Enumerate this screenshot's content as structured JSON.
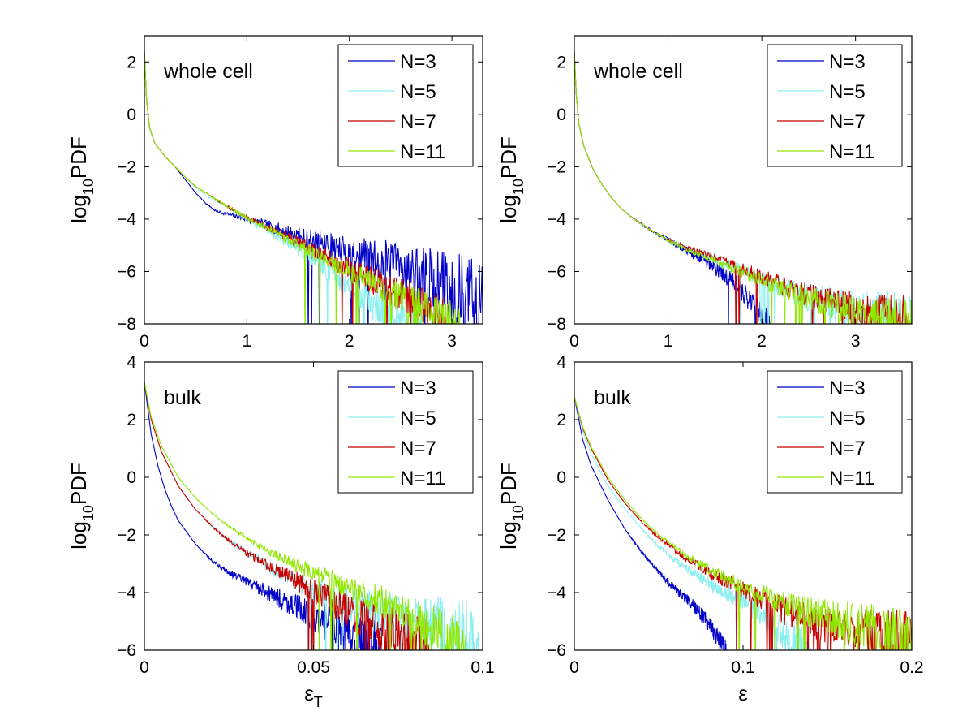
{
  "chart_data": [
    {
      "type": "line",
      "panel_label": "whole cell",
      "xlabel": "",
      "ylabel": {
        "base": "log",
        "sub": "10",
        "rest": "PDF"
      },
      "xlim": [
        0,
        3.3
      ],
      "ylim": [
        -8,
        3
      ],
      "xticks": [
        0,
        1,
        2,
        3
      ],
      "yticks": [
        2,
        0,
        -2,
        -4,
        -6,
        -8
      ],
      "legend_position": "top-right",
      "series": [
        {
          "name": "N=3",
          "color": "#0000c8",
          "noise": 0.9,
          "x": [
            0,
            0.02,
            0.05,
            0.1,
            0.2,
            0.3,
            0.4,
            0.5,
            0.6,
            0.7,
            0.8,
            0.9,
            1.0,
            1.2,
            1.4,
            1.6,
            1.8,
            2.0,
            2.2,
            2.4,
            2.6,
            2.8,
            3.0,
            3.2,
            3.3
          ],
          "y": [
            2.4,
            0.6,
            -0.5,
            -1.1,
            -1.6,
            -2.0,
            -2.5,
            -3.0,
            -3.4,
            -3.7,
            -3.8,
            -3.9,
            -4.0,
            -4.25,
            -4.5,
            -4.75,
            -5.0,
            -5.3,
            -5.5,
            -5.7,
            -6.0,
            -6.3,
            -6.6,
            -7.0,
            -7.2
          ]
        },
        {
          "name": "N=5",
          "color": "#8cf0f0",
          "noise": 0.7,
          "x": [
            0,
            0.02,
            0.05,
            0.1,
            0.2,
            0.3,
            0.4,
            0.5,
            0.6,
            0.8,
            1.0,
            1.2,
            1.4,
            1.6,
            1.8,
            2.0,
            2.2,
            2.4,
            2.6,
            2.7
          ],
          "y": [
            2.4,
            0.6,
            -0.5,
            -1.1,
            -1.6,
            -2.0,
            -2.4,
            -2.8,
            -3.1,
            -3.5,
            -4.0,
            -4.4,
            -4.9,
            -5.4,
            -6.0,
            -6.6,
            -7.2,
            -7.6,
            -8.0,
            -8.0
          ]
        },
        {
          "name": "N=7",
          "color": "#c80000",
          "noise": 0.6,
          "x": [
            0,
            0.02,
            0.05,
            0.1,
            0.2,
            0.3,
            0.4,
            0.5,
            0.6,
            0.8,
            1.0,
            1.2,
            1.4,
            1.6,
            1.8,
            2.0,
            2.2,
            2.4,
            2.6,
            2.8,
            2.95
          ],
          "y": [
            2.4,
            0.6,
            -0.5,
            -1.1,
            -1.6,
            -2.0,
            -2.4,
            -2.75,
            -3.0,
            -3.5,
            -3.95,
            -4.3,
            -4.7,
            -5.1,
            -5.5,
            -5.9,
            -6.3,
            -6.7,
            -7.1,
            -7.5,
            -7.8
          ]
        },
        {
          "name": "N=11",
          "color": "#90e800",
          "noise": 0.55,
          "x": [
            0,
            0.02,
            0.05,
            0.1,
            0.2,
            0.3,
            0.4,
            0.5,
            0.6,
            0.8,
            1.0,
            1.2,
            1.4,
            1.6,
            1.8,
            2.0,
            2.2,
            2.4,
            2.6,
            2.8,
            3.0,
            3.1
          ],
          "y": [
            2.4,
            0.6,
            -0.5,
            -1.1,
            -1.6,
            -2.0,
            -2.4,
            -2.75,
            -3.0,
            -3.5,
            -3.95,
            -4.35,
            -4.8,
            -5.2,
            -5.6,
            -6.0,
            -6.4,
            -6.8,
            -7.2,
            -7.5,
            -7.8,
            -8.0
          ]
        }
      ]
    },
    {
      "type": "line",
      "panel_label": "whole cell",
      "xlabel": "",
      "ylabel": {
        "base": "log",
        "sub": "10",
        "rest": "PDF"
      },
      "xlim": [
        0,
        3.6
      ],
      "ylim": [
        -8,
        3
      ],
      "xticks": [
        0,
        1,
        2,
        3
      ],
      "yticks": [
        2,
        0,
        -2,
        -4,
        -6,
        -8
      ],
      "legend_position": "top-right",
      "series": [
        {
          "name": "N=3",
          "color": "#0000c8",
          "noise": 0.9,
          "x": [
            0,
            0.02,
            0.05,
            0.1,
            0.2,
            0.3,
            0.4,
            0.5,
            0.6,
            0.8,
            1.0,
            1.2,
            1.4,
            1.6,
            1.8,
            2.0,
            2.1
          ],
          "y": [
            2.4,
            0.8,
            -0.4,
            -1.2,
            -2.1,
            -2.7,
            -3.2,
            -3.6,
            -3.9,
            -4.4,
            -4.8,
            -5.2,
            -5.6,
            -6.1,
            -6.8,
            -7.6,
            -8.0
          ]
        },
        {
          "name": "N=5",
          "color": "#8cf0f0",
          "noise": 0.6,
          "x": [
            0,
            0.02,
            0.05,
            0.1,
            0.2,
            0.3,
            0.4,
            0.5,
            0.6,
            0.8,
            1.0,
            1.2,
            1.4,
            1.6,
            1.8,
            2.0,
            2.2,
            2.4,
            2.6,
            2.8,
            3.0,
            3.2,
            3.4,
            3.6
          ],
          "y": [
            2.4,
            0.8,
            -0.4,
            -1.2,
            -2.1,
            -2.7,
            -3.2,
            -3.6,
            -3.9,
            -4.4,
            -4.8,
            -5.1,
            -5.4,
            -5.7,
            -6.0,
            -6.3,
            -6.6,
            -6.9,
            -7.1,
            -7.3,
            -7.5,
            -7.6,
            -7.7,
            -7.8
          ]
        },
        {
          "name": "N=7",
          "color": "#c80000",
          "noise": 0.5,
          "x": [
            0,
            0.02,
            0.05,
            0.1,
            0.2,
            0.3,
            0.4,
            0.5,
            0.6,
            0.8,
            1.0,
            1.2,
            1.4,
            1.6,
            1.8,
            2.0,
            2.2,
            2.4,
            2.6,
            2.8,
            3.0,
            3.2,
            3.4,
            3.6
          ],
          "y": [
            2.4,
            0.8,
            -0.4,
            -1.2,
            -2.1,
            -2.7,
            -3.2,
            -3.6,
            -3.9,
            -4.4,
            -4.8,
            -5.1,
            -5.35,
            -5.6,
            -5.9,
            -6.2,
            -6.5,
            -6.8,
            -7.0,
            -7.2,
            -7.4,
            -7.55,
            -7.7,
            -7.8
          ]
        },
        {
          "name": "N=11",
          "color": "#90e800",
          "noise": 0.5,
          "x": [
            0,
            0.02,
            0.05,
            0.1,
            0.2,
            0.3,
            0.4,
            0.5,
            0.6,
            0.8,
            1.0,
            1.2,
            1.4,
            1.6,
            1.8,
            2.0,
            2.2,
            2.4,
            2.6,
            2.8,
            3.0,
            3.2,
            3.4,
            3.6
          ],
          "y": [
            2.4,
            0.8,
            -0.4,
            -1.2,
            -2.1,
            -2.7,
            -3.2,
            -3.6,
            -3.9,
            -4.4,
            -4.8,
            -5.15,
            -5.45,
            -5.75,
            -6.05,
            -6.35,
            -6.65,
            -6.9,
            -7.15,
            -7.35,
            -7.55,
            -7.7,
            -7.8,
            -7.9
          ]
        }
      ]
    },
    {
      "type": "line",
      "panel_label": "bulk",
      "xlabel": {
        "base": "ε",
        "sub": "T"
      },
      "ylabel": {
        "base": "log",
        "sub": "10",
        "rest": "PDF"
      },
      "xlim": [
        0,
        0.1
      ],
      "ylim": [
        -6,
        4
      ],
      "xticks": [
        0,
        0.05,
        0.1
      ],
      "yticks": [
        4,
        2,
        0,
        -2,
        -4,
        -6
      ],
      "legend_position": "top-right",
      "series": [
        {
          "name": "N=3",
          "color": "#0000c8",
          "noise": 1.2,
          "x": [
            0,
            0.002,
            0.004,
            0.006,
            0.008,
            0.01,
            0.015,
            0.02,
            0.025,
            0.03,
            0.035,
            0.04,
            0.045,
            0.05,
            0.055,
            0.06,
            0.065,
            0.07
          ],
          "y": [
            3.3,
            1.5,
            0.4,
            -0.4,
            -1.0,
            -1.5,
            -2.3,
            -2.9,
            -3.3,
            -3.6,
            -3.9,
            -4.2,
            -4.5,
            -4.8,
            -5.1,
            -5.4,
            -5.7,
            -6.0
          ]
        },
        {
          "name": "N=5",
          "color": "#8cf0f0",
          "noise": 0.9,
          "x": [
            0,
            0.002,
            0.005,
            0.01,
            0.015,
            0.02,
            0.025,
            0.03,
            0.035,
            0.04,
            0.045,
            0.05,
            0.055,
            0.06,
            0.065,
            0.07,
            0.075,
            0.08,
            0.085,
            0.09,
            0.095,
            0.1
          ],
          "y": [
            3.3,
            2.0,
            0.9,
            -0.3,
            -1.1,
            -1.7,
            -2.2,
            -2.6,
            -2.95,
            -3.3,
            -3.6,
            -3.9,
            -4.1,
            -4.35,
            -4.55,
            -4.75,
            -4.95,
            -5.1,
            -5.3,
            -5.5,
            -5.7,
            -5.9
          ]
        },
        {
          "name": "N=7",
          "color": "#c80000",
          "noise": 0.9,
          "x": [
            0,
            0.002,
            0.005,
            0.01,
            0.015,
            0.02,
            0.025,
            0.03,
            0.035,
            0.04,
            0.045,
            0.05,
            0.055,
            0.06,
            0.065,
            0.07,
            0.075,
            0.08,
            0.085
          ],
          "y": [
            3.3,
            2.0,
            0.9,
            -0.3,
            -1.1,
            -1.7,
            -2.2,
            -2.6,
            -2.95,
            -3.3,
            -3.6,
            -3.95,
            -4.3,
            -4.6,
            -4.9,
            -5.2,
            -5.5,
            -5.8,
            -6.0
          ]
        },
        {
          "name": "N=11",
          "color": "#90e800",
          "noise": 0.6,
          "x": [
            0,
            0.002,
            0.005,
            0.01,
            0.015,
            0.02,
            0.025,
            0.03,
            0.035,
            0.04,
            0.045,
            0.05,
            0.055,
            0.06,
            0.065,
            0.07,
            0.075,
            0.08,
            0.085,
            0.09,
            0.095
          ],
          "y": [
            3.3,
            2.1,
            1.1,
            0.0,
            -0.7,
            -1.25,
            -1.7,
            -2.1,
            -2.45,
            -2.75,
            -3.05,
            -3.3,
            -3.55,
            -3.8,
            -4.05,
            -4.3,
            -4.6,
            -4.9,
            -5.2,
            -5.5,
            -5.8
          ]
        }
      ]
    },
    {
      "type": "line",
      "panel_label": "bulk",
      "xlabel": {
        "base": "ε",
        "sub": ""
      },
      "ylabel": {
        "base": "log",
        "sub": "10",
        "rest": "PDF"
      },
      "xlim": [
        0,
        0.2
      ],
      "ylim": [
        -6,
        4
      ],
      "xticks": [
        0,
        0.1,
        0.2
      ],
      "yticks": [
        4,
        2,
        0,
        -2,
        -4,
        -6
      ],
      "legend_position": "top-right",
      "series": [
        {
          "name": "N=3",
          "color": "#0000c8",
          "noise": 1.0,
          "x": [
            0,
            0.005,
            0.01,
            0.02,
            0.03,
            0.04,
            0.05,
            0.06,
            0.07,
            0.08,
            0.09
          ],
          "y": [
            2.8,
            1.3,
            0.4,
            -0.8,
            -1.8,
            -2.6,
            -3.3,
            -3.9,
            -4.4,
            -5.1,
            -6.0
          ]
        },
        {
          "name": "N=5",
          "color": "#8cf0f0",
          "noise": 0.8,
          "x": [
            0,
            0.005,
            0.01,
            0.02,
            0.03,
            0.04,
            0.05,
            0.06,
            0.07,
            0.08,
            0.09,
            0.1,
            0.11,
            0.12,
            0.13,
            0.14
          ],
          "y": [
            2.8,
            1.6,
            0.8,
            -0.3,
            -1.1,
            -1.8,
            -2.4,
            -2.9,
            -3.3,
            -3.7,
            -4.0,
            -4.3,
            -4.7,
            -5.2,
            -5.7,
            -6.0
          ]
        },
        {
          "name": "N=7",
          "color": "#c80000",
          "noise": 0.7,
          "x": [
            0,
            0.005,
            0.01,
            0.02,
            0.03,
            0.04,
            0.05,
            0.06,
            0.07,
            0.08,
            0.09,
            0.1,
            0.11,
            0.12,
            0.13,
            0.14,
            0.15,
            0.16,
            0.17,
            0.18,
            0.19,
            0.2
          ],
          "y": [
            2.8,
            1.7,
            1.0,
            -0.1,
            -0.9,
            -1.55,
            -2.1,
            -2.55,
            -2.95,
            -3.3,
            -3.6,
            -3.9,
            -4.2,
            -4.5,
            -4.75,
            -4.95,
            -5.15,
            -5.3,
            -5.45,
            -5.6,
            -5.7,
            -5.8
          ]
        },
        {
          "name": "N=11",
          "color": "#90e800",
          "noise": 0.6,
          "x": [
            0,
            0.005,
            0.01,
            0.02,
            0.03,
            0.04,
            0.05,
            0.06,
            0.07,
            0.08,
            0.09,
            0.1,
            0.11,
            0.12,
            0.13,
            0.14,
            0.15,
            0.16,
            0.17,
            0.18,
            0.19,
            0.2
          ],
          "y": [
            2.8,
            1.75,
            1.05,
            0.0,
            -0.8,
            -1.45,
            -2.0,
            -2.45,
            -2.85,
            -3.2,
            -3.5,
            -3.8,
            -4.05,
            -4.3,
            -4.5,
            -4.7,
            -4.85,
            -5.0,
            -5.15,
            -5.3,
            -5.45,
            -5.6
          ]
        }
      ]
    }
  ]
}
